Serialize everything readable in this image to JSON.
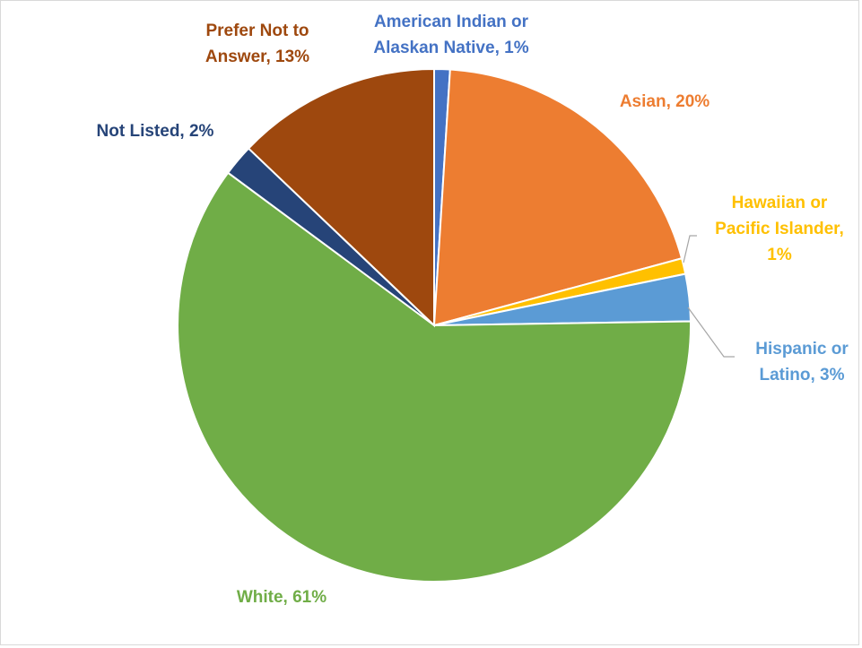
{
  "chart_data": {
    "type": "pie",
    "title": "",
    "slices": [
      {
        "label": "American Indian or Alaskan Native",
        "display_label": [
          "American Indian or",
          "Alaskan Native, 1%"
        ],
        "value": 1,
        "color": "#4472c4"
      },
      {
        "label": "Asian",
        "display_label": [
          "Asian, 20%"
        ],
        "value": 20,
        "color": "#ed7d31"
      },
      {
        "label": "Hawaiian or Pacific Islander",
        "display_label": [
          "Hawaiian or",
          "Pacific Islander,",
          "1%"
        ],
        "value": 1,
        "color": "#ffc000"
      },
      {
        "label": "Hispanic or Latino",
        "display_label": [
          "Hispanic or",
          "Latino, 3%"
        ],
        "value": 3,
        "color": "#5b9bd5"
      },
      {
        "label": "White",
        "display_label": [
          "White, 61%"
        ],
        "value": 61,
        "color": "#70ad47"
      },
      {
        "label": "Not Listed",
        "display_label": [
          "Not Listed, 2%"
        ],
        "value": 2,
        "color": "#264478"
      },
      {
        "label": "Prefer Not to Answer",
        "display_label": [
          "Prefer Not to",
          "Answer, 13%"
        ],
        "value": 13,
        "color": "#9e480e"
      }
    ]
  }
}
